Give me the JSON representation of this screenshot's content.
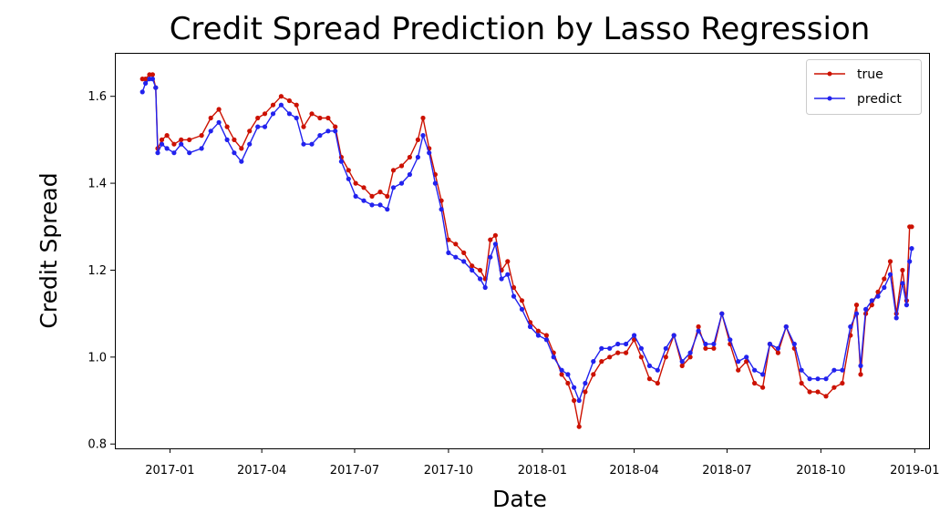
{
  "chart_data": {
    "type": "line",
    "title": "Credit Spread Prediction by Lasso Regression",
    "xlabel": "Date",
    "ylabel": "Credit Spread",
    "xlim": [
      "2016-11-08",
      "2019-01-15"
    ],
    "ylim": [
      0.79,
      1.7
    ],
    "xticks": [
      "2017-01",
      "2017-04",
      "2017-07",
      "2017-10",
      "2018-01",
      "2018-04",
      "2018-07",
      "2018-10",
      "2019-01"
    ],
    "yticks": [
      "0.8",
      "1.0",
      "1.2",
      "1.4",
      "1.6"
    ],
    "grid": false,
    "legend_position": "top-right",
    "colors": {
      "true": "#cc1100",
      "predict": "#2222ee"
    },
    "series": [
      {
        "name": "true",
        "color": "#cc1100",
        "points": [
          [
            "2016-12-05",
            1.64
          ],
          [
            "2016-12-08",
            1.64
          ],
          [
            "2016-12-12",
            1.65
          ],
          [
            "2016-12-15",
            1.65
          ],
          [
            "2016-12-18",
            1.62
          ],
          [
            "2016-12-20",
            1.48
          ],
          [
            "2016-12-24",
            1.5
          ],
          [
            "2016-12-29",
            1.51
          ],
          [
            "2017-01-05",
            1.49
          ],
          [
            "2017-01-12",
            1.5
          ],
          [
            "2017-01-20",
            1.5
          ],
          [
            "2017-02-01",
            1.51
          ],
          [
            "2017-02-10",
            1.55
          ],
          [
            "2017-02-18",
            1.57
          ],
          [
            "2017-02-26",
            1.53
          ],
          [
            "2017-03-05",
            1.5
          ],
          [
            "2017-03-12",
            1.48
          ],
          [
            "2017-03-20",
            1.52
          ],
          [
            "2017-03-28",
            1.55
          ],
          [
            "2017-04-04",
            1.56
          ],
          [
            "2017-04-12",
            1.58
          ],
          [
            "2017-04-20",
            1.6
          ],
          [
            "2017-04-28",
            1.59
          ],
          [
            "2017-05-05",
            1.58
          ],
          [
            "2017-05-12",
            1.53
          ],
          [
            "2017-05-20",
            1.56
          ],
          [
            "2017-05-28",
            1.55
          ],
          [
            "2017-06-05",
            1.55
          ],
          [
            "2017-06-12",
            1.53
          ],
          [
            "2017-06-18",
            1.46
          ],
          [
            "2017-06-25",
            1.43
          ],
          [
            "2017-07-02",
            1.4
          ],
          [
            "2017-07-10",
            1.39
          ],
          [
            "2017-07-18",
            1.37
          ],
          [
            "2017-07-26",
            1.38
          ],
          [
            "2017-08-02",
            1.37
          ],
          [
            "2017-08-08",
            1.43
          ],
          [
            "2017-08-16",
            1.44
          ],
          [
            "2017-08-24",
            1.46
          ],
          [
            "2017-09-01",
            1.5
          ],
          [
            "2017-09-06",
            1.55
          ],
          [
            "2017-09-12",
            1.48
          ],
          [
            "2017-09-18",
            1.42
          ],
          [
            "2017-09-24",
            1.36
          ],
          [
            "2017-10-01",
            1.27
          ],
          [
            "2017-10-08",
            1.26
          ],
          [
            "2017-10-16",
            1.24
          ],
          [
            "2017-10-24",
            1.21
          ],
          [
            "2017-11-01",
            1.2
          ],
          [
            "2017-11-06",
            1.18
          ],
          [
            "2017-11-11",
            1.27
          ],
          [
            "2017-11-16",
            1.28
          ],
          [
            "2017-11-22",
            1.2
          ],
          [
            "2017-11-28",
            1.22
          ],
          [
            "2017-12-04",
            1.16
          ],
          [
            "2017-12-12",
            1.13
          ],
          [
            "2017-12-20",
            1.08
          ],
          [
            "2017-12-28",
            1.06
          ],
          [
            "2018-01-05",
            1.05
          ],
          [
            "2018-01-12",
            1.01
          ],
          [
            "2018-01-20",
            0.96
          ],
          [
            "2018-01-26",
            0.94
          ],
          [
            "2018-02-01",
            0.9
          ],
          [
            "2018-02-06",
            0.84
          ],
          [
            "2018-02-12",
            0.92
          ],
          [
            "2018-02-20",
            0.96
          ],
          [
            "2018-02-28",
            0.99
          ],
          [
            "2018-03-08",
            1.0
          ],
          [
            "2018-03-16",
            1.01
          ],
          [
            "2018-03-24",
            1.01
          ],
          [
            "2018-04-01",
            1.04
          ],
          [
            "2018-04-08",
            1.0
          ],
          [
            "2018-04-16",
            0.95
          ],
          [
            "2018-04-24",
            0.94
          ],
          [
            "2018-05-02",
            1.0
          ],
          [
            "2018-05-10",
            1.05
          ],
          [
            "2018-05-18",
            0.98
          ],
          [
            "2018-05-26",
            1.0
          ],
          [
            "2018-06-03",
            1.07
          ],
          [
            "2018-06-10",
            1.02
          ],
          [
            "2018-06-18",
            1.02
          ],
          [
            "2018-06-26",
            1.1
          ],
          [
            "2018-07-04",
            1.03
          ],
          [
            "2018-07-12",
            0.97
          ],
          [
            "2018-07-20",
            0.99
          ],
          [
            "2018-07-28",
            0.94
          ],
          [
            "2018-08-05",
            0.93
          ],
          [
            "2018-08-12",
            1.03
          ],
          [
            "2018-08-20",
            1.01
          ],
          [
            "2018-08-28",
            1.07
          ],
          [
            "2018-09-05",
            1.02
          ],
          [
            "2018-09-12",
            0.94
          ],
          [
            "2018-09-20",
            0.92
          ],
          [
            "2018-09-28",
            0.92
          ],
          [
            "2018-10-06",
            0.91
          ],
          [
            "2018-10-14",
            0.93
          ],
          [
            "2018-10-22",
            0.94
          ],
          [
            "2018-10-30",
            1.05
          ],
          [
            "2018-11-05",
            1.12
          ],
          [
            "2018-11-09",
            0.96
          ],
          [
            "2018-11-14",
            1.1
          ],
          [
            "2018-11-20",
            1.12
          ],
          [
            "2018-11-26",
            1.15
          ],
          [
            "2018-12-02",
            1.18
          ],
          [
            "2018-12-08",
            1.22
          ],
          [
            "2018-12-14",
            1.1
          ],
          [
            "2018-12-20",
            1.2
          ],
          [
            "2018-12-24",
            1.13
          ],
          [
            "2018-12-27",
            1.3
          ],
          [
            "2018-12-29",
            1.3
          ]
        ]
      },
      {
        "name": "predict",
        "color": "#2222ee",
        "points": [
          [
            "2016-12-05",
            1.61
          ],
          [
            "2016-12-08",
            1.63
          ],
          [
            "2016-12-12",
            1.64
          ],
          [
            "2016-12-15",
            1.64
          ],
          [
            "2016-12-18",
            1.62
          ],
          [
            "2016-12-20",
            1.47
          ],
          [
            "2016-12-24",
            1.49
          ],
          [
            "2016-12-29",
            1.48
          ],
          [
            "2017-01-05",
            1.47
          ],
          [
            "2017-01-12",
            1.49
          ],
          [
            "2017-01-20",
            1.47
          ],
          [
            "2017-02-01",
            1.48
          ],
          [
            "2017-02-10",
            1.52
          ],
          [
            "2017-02-18",
            1.54
          ],
          [
            "2017-02-26",
            1.5
          ],
          [
            "2017-03-05",
            1.47
          ],
          [
            "2017-03-12",
            1.45
          ],
          [
            "2017-03-20",
            1.49
          ],
          [
            "2017-03-28",
            1.53
          ],
          [
            "2017-04-04",
            1.53
          ],
          [
            "2017-04-12",
            1.56
          ],
          [
            "2017-04-20",
            1.58
          ],
          [
            "2017-04-28",
            1.56
          ],
          [
            "2017-05-05",
            1.55
          ],
          [
            "2017-05-12",
            1.49
          ],
          [
            "2017-05-20",
            1.49
          ],
          [
            "2017-05-28",
            1.51
          ],
          [
            "2017-06-05",
            1.52
          ],
          [
            "2017-06-12",
            1.52
          ],
          [
            "2017-06-18",
            1.45
          ],
          [
            "2017-06-25",
            1.41
          ],
          [
            "2017-07-02",
            1.37
          ],
          [
            "2017-07-10",
            1.36
          ],
          [
            "2017-07-18",
            1.35
          ],
          [
            "2017-07-26",
            1.35
          ],
          [
            "2017-08-02",
            1.34
          ],
          [
            "2017-08-08",
            1.39
          ],
          [
            "2017-08-16",
            1.4
          ],
          [
            "2017-08-24",
            1.42
          ],
          [
            "2017-09-01",
            1.46
          ],
          [
            "2017-09-06",
            1.51
          ],
          [
            "2017-09-12",
            1.47
          ],
          [
            "2017-09-18",
            1.4
          ],
          [
            "2017-09-24",
            1.34
          ],
          [
            "2017-10-01",
            1.24
          ],
          [
            "2017-10-08",
            1.23
          ],
          [
            "2017-10-16",
            1.22
          ],
          [
            "2017-10-24",
            1.2
          ],
          [
            "2017-11-01",
            1.18
          ],
          [
            "2017-11-06",
            1.16
          ],
          [
            "2017-11-11",
            1.23
          ],
          [
            "2017-11-16",
            1.26
          ],
          [
            "2017-11-22",
            1.18
          ],
          [
            "2017-11-28",
            1.19
          ],
          [
            "2017-12-04",
            1.14
          ],
          [
            "2017-12-12",
            1.11
          ],
          [
            "2017-12-20",
            1.07
          ],
          [
            "2017-12-28",
            1.05
          ],
          [
            "2018-01-05",
            1.04
          ],
          [
            "2018-01-12",
            1.0
          ],
          [
            "2018-01-20",
            0.97
          ],
          [
            "2018-01-26",
            0.96
          ],
          [
            "2018-02-01",
            0.93
          ],
          [
            "2018-02-06",
            0.9
          ],
          [
            "2018-02-12",
            0.94
          ],
          [
            "2018-02-20",
            0.99
          ],
          [
            "2018-02-28",
            1.02
          ],
          [
            "2018-03-08",
            1.02
          ],
          [
            "2018-03-16",
            1.03
          ],
          [
            "2018-03-24",
            1.03
          ],
          [
            "2018-04-01",
            1.05
          ],
          [
            "2018-04-08",
            1.02
          ],
          [
            "2018-04-16",
            0.98
          ],
          [
            "2018-04-24",
            0.97
          ],
          [
            "2018-05-02",
            1.02
          ],
          [
            "2018-05-10",
            1.05
          ],
          [
            "2018-05-18",
            0.99
          ],
          [
            "2018-05-26",
            1.01
          ],
          [
            "2018-06-03",
            1.06
          ],
          [
            "2018-06-10",
            1.03
          ],
          [
            "2018-06-18",
            1.03
          ],
          [
            "2018-06-26",
            1.1
          ],
          [
            "2018-07-04",
            1.04
          ],
          [
            "2018-07-12",
            0.99
          ],
          [
            "2018-07-20",
            1.0
          ],
          [
            "2018-07-28",
            0.97
          ],
          [
            "2018-08-05",
            0.96
          ],
          [
            "2018-08-12",
            1.03
          ],
          [
            "2018-08-20",
            1.02
          ],
          [
            "2018-08-28",
            1.07
          ],
          [
            "2018-09-05",
            1.03
          ],
          [
            "2018-09-12",
            0.97
          ],
          [
            "2018-09-20",
            0.95
          ],
          [
            "2018-09-28",
            0.95
          ],
          [
            "2018-10-06",
            0.95
          ],
          [
            "2018-10-14",
            0.97
          ],
          [
            "2018-10-22",
            0.97
          ],
          [
            "2018-10-30",
            1.07
          ],
          [
            "2018-11-05",
            1.1
          ],
          [
            "2018-11-09",
            0.98
          ],
          [
            "2018-11-14",
            1.11
          ],
          [
            "2018-11-20",
            1.13
          ],
          [
            "2018-11-26",
            1.14
          ],
          [
            "2018-12-02",
            1.16
          ],
          [
            "2018-12-08",
            1.19
          ],
          [
            "2018-12-14",
            1.09
          ],
          [
            "2018-12-20",
            1.17
          ],
          [
            "2018-12-24",
            1.12
          ],
          [
            "2018-12-27",
            1.22
          ],
          [
            "2018-12-29",
            1.25
          ]
        ]
      }
    ]
  }
}
